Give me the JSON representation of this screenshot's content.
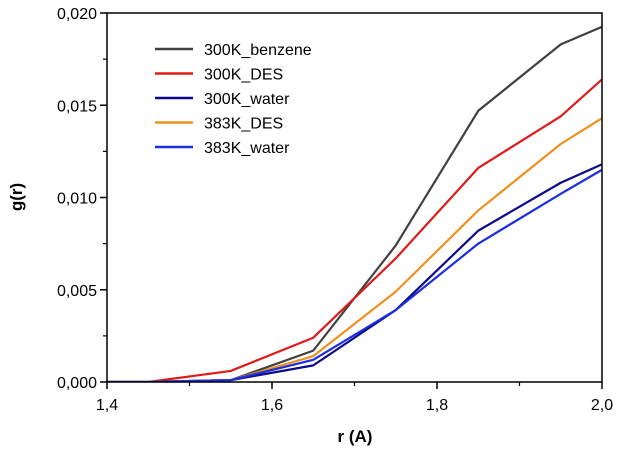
{
  "chart_data": {
    "type": "line",
    "title": "",
    "xlabel": "r (A)",
    "ylabel": "g(r)",
    "xlim": [
      1.4,
      2.0
    ],
    "ylim": [
      0.0,
      0.02
    ],
    "x_ticks": [
      1.4,
      1.6,
      1.8,
      2.0
    ],
    "x_tick_labels": [
      "1,4",
      "1,6",
      "1,8",
      "2,0"
    ],
    "y_ticks": [
      0.0,
      0.005,
      0.01,
      0.015,
      0.02
    ],
    "y_tick_labels": [
      "0,000",
      "0,005",
      "0,010",
      "0,015",
      "0,020"
    ],
    "grid": false,
    "legend_position": "top-left",
    "x": [
      1.35,
      1.45,
      1.55,
      1.65,
      1.75,
      1.85,
      1.95,
      2.05
    ],
    "series": [
      {
        "name": "300K_benzene",
        "color": "#404040",
        "values": [
          0.0,
          0.0,
          0.0001,
          0.0017,
          0.0074,
          0.0147,
          0.0183,
          0.0202
        ]
      },
      {
        "name": "300K_DES",
        "color": "#e01a1a",
        "values": [
          0.0,
          0.0,
          0.0006,
          0.0024,
          0.0067,
          0.0116,
          0.0144,
          0.0184
        ]
      },
      {
        "name": "300K_water",
        "color": "#0a0a8a",
        "values": [
          0.0,
          0.0,
          0.0001,
          0.0009,
          0.0039,
          0.0082,
          0.0108,
          0.0128
        ]
      },
      {
        "name": "383K_DES",
        "color": "#f0901e",
        "values": [
          0.0,
          0.0,
          0.0001,
          0.0014,
          0.0049,
          0.0093,
          0.0129,
          0.0157
        ]
      },
      {
        "name": "383K_water",
        "color": "#1a2ee0",
        "values": [
          0.0,
          0.0,
          0.0001,
          0.0012,
          0.0039,
          0.0075,
          0.0102,
          0.0128
        ]
      }
    ]
  }
}
